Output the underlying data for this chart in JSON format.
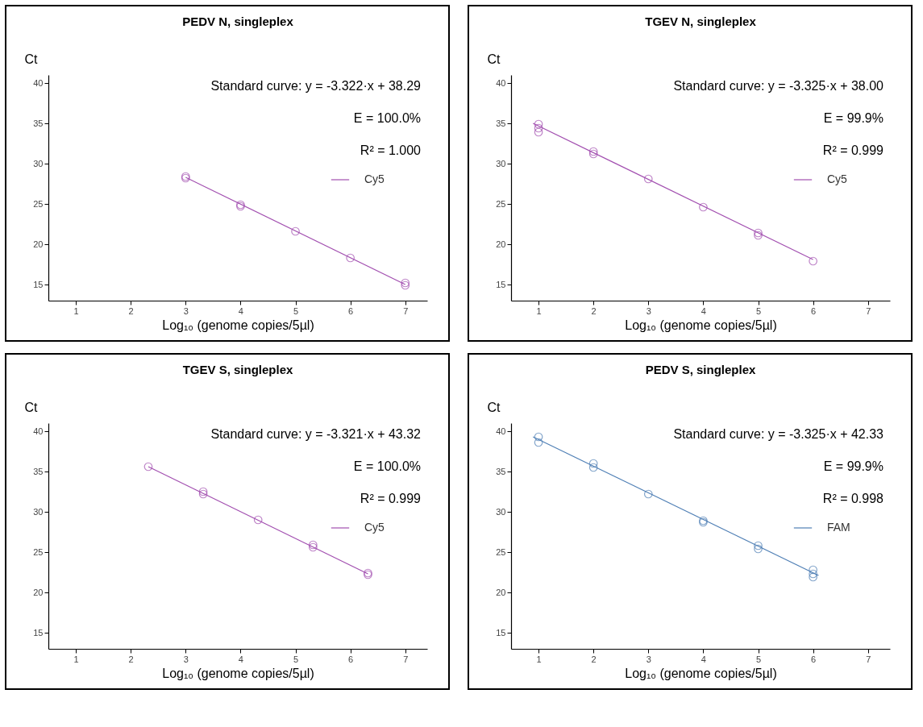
{
  "chart_data": [
    {
      "type": "scatter",
      "title": "PEDV N, singleplex",
      "xlabel": "Log₁₀ (genome copies/5µl)",
      "ylabel": "Ct",
      "xlim": [
        0.5,
        7.4
      ],
      "ylim": [
        13,
        41
      ],
      "xticks": [
        1,
        2,
        3,
        4,
        5,
        6,
        7
      ],
      "yticks": [
        15,
        20,
        25,
        30,
        35,
        40
      ],
      "grid": false,
      "legend": "top right",
      "annotations": [
        "Standard curve: y = -3.322·x + 38.29",
        "E = 100.0%",
        "R² = 1.000"
      ],
      "series": [
        {
          "marker": "circle",
          "color": "#a24fb0",
          "x": [
            3,
            3,
            4,
            4,
            5,
            6,
            7,
            7
          ],
          "values": [
            28.2,
            28.4,
            24.9,
            24.7,
            21.6,
            18.3,
            15.2,
            14.9
          ]
        },
        {
          "type": "line",
          "marker": "none",
          "name": "Cy5",
          "color": "#a24fb0",
          "x": [
            3,
            7
          ],
          "values": [
            28.3,
            15.0
          ]
        }
      ]
    },
    {
      "type": "scatter",
      "title": "TGEV N, singleplex",
      "xlabel": "Log₁₀ (genome copies/5µl)",
      "ylabel": "Ct",
      "xlim": [
        0.5,
        7.4
      ],
      "ylim": [
        13,
        41
      ],
      "xticks": [
        1,
        2,
        3,
        4,
        5,
        6,
        7
      ],
      "yticks": [
        15,
        20,
        25,
        30,
        35,
        40
      ],
      "grid": false,
      "legend": "top right",
      "annotations": [
        "Standard curve: y = -3.325·x + 38.00",
        "E = 99.9%",
        "R² = 0.999"
      ],
      "series": [
        {
          "marker": "circle",
          "color": "#a24fb0",
          "x": [
            1,
            1,
            1,
            2,
            2,
            3,
            4,
            5,
            5,
            6
          ],
          "values": [
            34.9,
            34.4,
            33.9,
            31.5,
            31.2,
            28.1,
            24.6,
            21.4,
            21.1,
            17.9
          ]
        },
        {
          "type": "line",
          "marker": "none",
          "name": "Cy5",
          "color": "#a24fb0",
          "x": [
            0.9,
            6
          ],
          "values": [
            35.0,
            18.1
          ]
        }
      ]
    },
    {
      "type": "scatter",
      "title": "TGEV S, singleplex",
      "xlabel": "Log₁₀ (genome copies/5µl)",
      "ylabel": "Ct",
      "xlim": [
        0.5,
        7.4
      ],
      "ylim": [
        13,
        41
      ],
      "xticks": [
        1,
        2,
        3,
        4,
        5,
        6,
        7
      ],
      "yticks": [
        15,
        20,
        25,
        30,
        35,
        40
      ],
      "grid": false,
      "legend": "top right",
      "annotations": [
        "Standard curve: y = -3.321·x + 43.32",
        "E = 100.0%",
        "R² = 0.999"
      ],
      "series": [
        {
          "marker": "circle",
          "color": "#a24fb0",
          "x": [
            2.32,
            3.32,
            3.32,
            4.32,
            5.32,
            5.32,
            6.32,
            6.32
          ],
          "values": [
            35.6,
            32.5,
            32.2,
            29.0,
            25.9,
            25.6,
            22.4,
            22.2
          ]
        },
        {
          "type": "line",
          "marker": "none",
          "name": "Cy5",
          "color": "#a24fb0",
          "x": [
            2.32,
            6.32
          ],
          "values": [
            35.6,
            22.3
          ]
        }
      ]
    },
    {
      "type": "scatter",
      "title": "PEDV S, singleplex",
      "xlabel": "Log₁₀ (genome copies/5µl)",
      "ylabel": "Ct",
      "xlim": [
        0.5,
        7.4
      ],
      "ylim": [
        13,
        41
      ],
      "xticks": [
        1,
        2,
        3,
        4,
        5,
        6,
        7
      ],
      "yticks": [
        15,
        20,
        25,
        30,
        35,
        40
      ],
      "grid": false,
      "legend": "top right",
      "annotations": [
        "Standard curve: y = -3.325·x + 42.33",
        "E = 99.9%",
        "R² = 0.998"
      ],
      "series": [
        {
          "marker": "circle",
          "color": "#4f7fb5",
          "x": [
            1,
            1,
            2,
            2,
            3,
            4,
            4,
            5,
            5,
            6,
            6,
            6
          ],
          "values": [
            39.3,
            38.6,
            36.0,
            35.5,
            32.2,
            28.9,
            28.7,
            25.8,
            25.4,
            22.8,
            22.3,
            21.9
          ]
        },
        {
          "type": "line",
          "marker": "none",
          "name": "FAM",
          "color": "#4f7fb5",
          "x": [
            0.9,
            6.1
          ],
          "values": [
            39.3,
            22.1
          ]
        }
      ]
    }
  ]
}
